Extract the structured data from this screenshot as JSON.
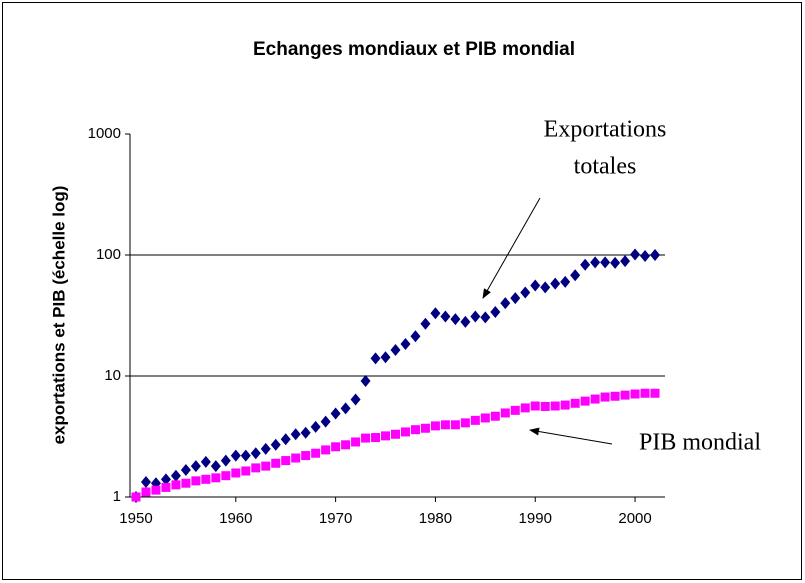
{
  "chart_data": {
    "type": "scatter",
    "title": "Echanges mondiaux et PIB mondial",
    "y_label": "exportations et PIB (échelle log)",
    "y_scale": "log",
    "grid": true,
    "x": [
      1950,
      1951,
      1952,
      1953,
      1954,
      1955,
      1956,
      1957,
      1958,
      1959,
      1960,
      1961,
      1962,
      1963,
      1964,
      1965,
      1966,
      1967,
      1968,
      1969,
      1970,
      1971,
      1972,
      1973,
      1974,
      1975,
      1976,
      1977,
      1978,
      1979,
      1980,
      1981,
      1982,
      1983,
      1984,
      1985,
      1986,
      1987,
      1988,
      1989,
      1990,
      1991,
      1992,
      1993,
      1994,
      1995,
      1996,
      1997,
      1998,
      1999,
      2000,
      2001,
      2002
    ],
    "series": [
      {
        "name": "Exportations totales",
        "color": "#000080",
        "marker": "diamond",
        "values": [
          1,
          1.33,
          1.3,
          1.4,
          1.5,
          1.67,
          1.8,
          1.95,
          1.8,
          2.0,
          2.2,
          2.2,
          2.3,
          2.5,
          2.7,
          3.0,
          3.3,
          3.4,
          3.8,
          4.2,
          4.9,
          5.4,
          6.4,
          9.1,
          14,
          14.3,
          16.4,
          18.4,
          21.3,
          27,
          33,
          31,
          29.5,
          28,
          31,
          30.5,
          33.8,
          40,
          44,
          49,
          56,
          54,
          58,
          60,
          68,
          83,
          87,
          87,
          86,
          89,
          101,
          98,
          100
        ]
      },
      {
        "name": "PIB mondial",
        "color": "#ff00ff",
        "marker": "square",
        "values": [
          1,
          1.1,
          1.14,
          1.2,
          1.26,
          1.3,
          1.36,
          1.4,
          1.44,
          1.5,
          1.58,
          1.64,
          1.74,
          1.8,
          1.9,
          2.0,
          2.1,
          2.2,
          2.3,
          2.45,
          2.6,
          2.7,
          2.85,
          3.07,
          3.1,
          3.2,
          3.3,
          3.45,
          3.6,
          3.7,
          3.87,
          3.95,
          3.95,
          4.1,
          4.3,
          4.5,
          4.65,
          4.95,
          5.2,
          5.45,
          5.65,
          5.6,
          5.65,
          5.75,
          5.95,
          6.2,
          6.45,
          6.7,
          6.8,
          6.95,
          7.1,
          7.2,
          7.2
        ]
      }
    ],
    "annotations": [
      {
        "series": 0,
        "lines": [
          "Exportations",
          "totales"
        ]
      },
      {
        "series": 1,
        "lines": [
          "PIB mondial"
        ]
      }
    ],
    "xlim": [
      1949.4,
      2003
    ],
    "xticks": [
      1950,
      1960,
      1970,
      1980,
      1990,
      2000
    ],
    "ylim": [
      1,
      1000
    ],
    "yticks": [
      1,
      10,
      100,
      1000
    ]
  }
}
